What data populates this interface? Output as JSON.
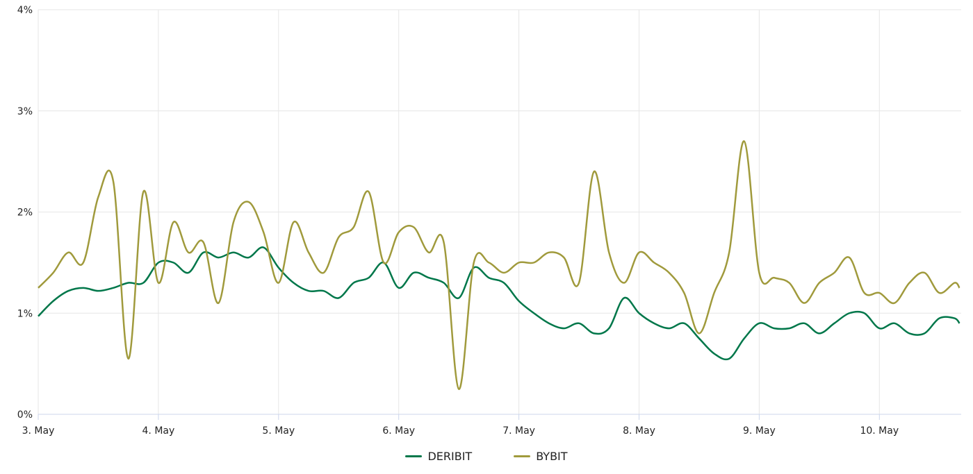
{
  "chart_data": {
    "type": "line",
    "title": "",
    "xlabel": "",
    "ylabel": "",
    "x_ticks": [
      "3. May",
      "4. May",
      "5. May",
      "6. May",
      "7. May",
      "8. May",
      "9. May",
      "10. May"
    ],
    "y_ticks": [
      "0%",
      "1%",
      "2%",
      "3%",
      "4%"
    ],
    "ylim": [
      0,
      4
    ],
    "xlim": [
      "3 May 00:00",
      "10 May 16:00"
    ],
    "grid": true,
    "legend_position": "bottom",
    "x": [
      "3 May 00:00",
      "3 May 03:00",
      "3 May 06:00",
      "3 May 09:00",
      "3 May 12:00",
      "3 May 15:00",
      "3 May 18:00",
      "3 May 21:00",
      "4 May 00:00",
      "4 May 03:00",
      "4 May 06:00",
      "4 May 09:00",
      "4 May 12:00",
      "4 May 15:00",
      "4 May 18:00",
      "4 May 21:00",
      "5 May 00:00",
      "5 May 03:00",
      "5 May 06:00",
      "5 May 09:00",
      "5 May 12:00",
      "5 May 15:00",
      "5 May 18:00",
      "5 May 21:00",
      "6 May 00:00",
      "6 May 03:00",
      "6 May 06:00",
      "6 May 09:00",
      "6 May 12:00",
      "6 May 15:00",
      "6 May 18:00",
      "6 May 21:00",
      "7 May 00:00",
      "7 May 03:00",
      "7 May 06:00",
      "7 May 09:00",
      "7 May 12:00",
      "7 May 15:00",
      "7 May 18:00",
      "7 May 21:00",
      "8 May 00:00",
      "8 May 03:00",
      "8 May 06:00",
      "8 May 09:00",
      "8 May 12:00",
      "8 May 15:00",
      "8 May 18:00",
      "8 May 21:00",
      "9 May 00:00",
      "9 May 03:00",
      "9 May 06:00",
      "9 May 09:00",
      "9 May 12:00",
      "9 May 15:00",
      "9 May 18:00",
      "9 May 21:00",
      "10 May 00:00",
      "10 May 03:00",
      "10 May 06:00",
      "10 May 09:00",
      "10 May 12:00",
      "10 May 15:00",
      "10 May 16:00"
    ],
    "series": [
      {
        "name": "DERIBIT",
        "color": "#00774a",
        "values": [
          0.97,
          1.12,
          1.22,
          1.25,
          1.22,
          1.25,
          1.3,
          1.3,
          1.5,
          1.5,
          1.4,
          1.6,
          1.55,
          1.6,
          1.55,
          1.65,
          1.45,
          1.3,
          1.22,
          1.22,
          1.15,
          1.3,
          1.35,
          1.5,
          1.25,
          1.4,
          1.35,
          1.3,
          1.15,
          1.45,
          1.35,
          1.3,
          1.12,
          1.0,
          0.9,
          0.85,
          0.9,
          0.8,
          0.85,
          1.15,
          1.0,
          0.9,
          0.85,
          0.9,
          0.75,
          0.6,
          0.55,
          0.75,
          0.9,
          0.85,
          0.85,
          0.9,
          0.8,
          0.9,
          1.0,
          1.0,
          0.85,
          0.9,
          0.8,
          0.8,
          0.95,
          0.95,
          0.9
        ]
      },
      {
        "name": "BYBIT",
        "color": "#a09a3c",
        "values": [
          1.25,
          1.4,
          1.6,
          1.5,
          2.15,
          2.3,
          0.55,
          2.2,
          1.3,
          1.9,
          1.6,
          1.7,
          1.1,
          1.9,
          2.1,
          1.8,
          1.3,
          1.9,
          1.6,
          1.4,
          1.75,
          1.85,
          2.2,
          1.5,
          1.8,
          1.85,
          1.6,
          1.7,
          0.25,
          1.5,
          1.5,
          1.4,
          1.5,
          1.5,
          1.6,
          1.55,
          1.3,
          2.4,
          1.6,
          1.3,
          1.6,
          1.5,
          1.4,
          1.2,
          0.8,
          1.2,
          1.6,
          2.7,
          1.4,
          1.35,
          1.3,
          1.1,
          1.3,
          1.4,
          1.55,
          1.2,
          1.2,
          1.1,
          1.3,
          1.4,
          1.2,
          1.3,
          1.25
        ]
      }
    ]
  }
}
